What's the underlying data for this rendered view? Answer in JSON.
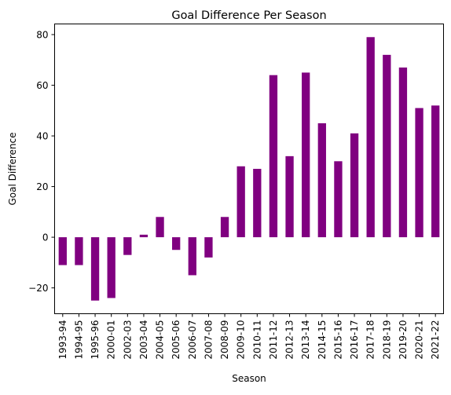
{
  "chart_data": {
    "type": "bar",
    "title": "Goal Difference Per Season",
    "xlabel": "Season",
    "ylabel": "Goal Difference",
    "categories": [
      "1993-94",
      "1994-95",
      "1995-96",
      "2000-01",
      "2002-03",
      "2003-04",
      "2004-05",
      "2005-06",
      "2006-07",
      "2007-08",
      "2008-09",
      "2009-10",
      "2010-11",
      "2011-12",
      "2012-13",
      "2013-14",
      "2014-15",
      "2015-16",
      "2016-17",
      "2017-18",
      "2018-19",
      "2019-20",
      "2020-21",
      "2021-22"
    ],
    "values": [
      -11,
      -11,
      -25,
      -24,
      -7,
      1,
      8,
      -5,
      -15,
      -8,
      8,
      28,
      27,
      64,
      32,
      65,
      45,
      30,
      41,
      79,
      72,
      67,
      51,
      52
    ],
    "ylim": [
      -30.2,
      84.2
    ],
    "yticks": [
      -20,
      0,
      20,
      40,
      60,
      80
    ],
    "ytick_labels": [
      "−20",
      "0",
      "20",
      "40",
      "60",
      "80"
    ],
    "bar_color": "#800080",
    "grid": false,
    "legend": "none"
  }
}
